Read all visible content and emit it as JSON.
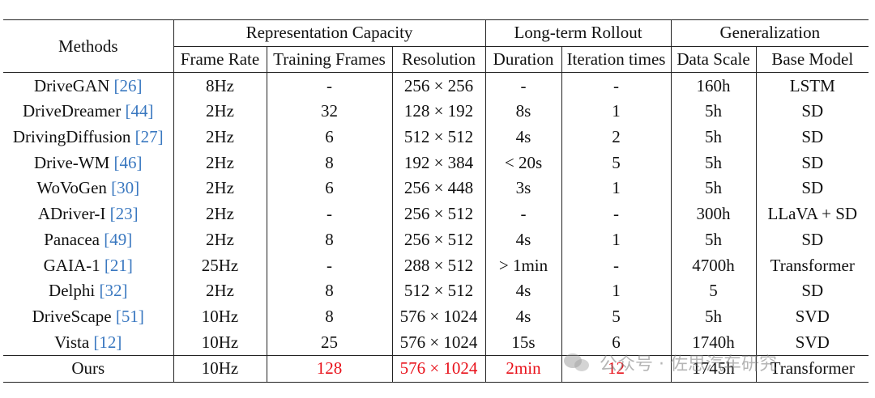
{
  "header": {
    "methods": "Methods",
    "groups": {
      "representation": "Representation Capacity",
      "rollout": "Long-term Rollout",
      "generalization": "Generalization"
    },
    "columns": {
      "frame_rate": "Frame Rate",
      "training_frames": "Training Frames",
      "resolution": "Resolution",
      "duration": "Duration",
      "iteration_times": "Iteration times",
      "data_scale": "Data Scale",
      "base_model": "Base Model"
    }
  },
  "rows": [
    {
      "name": "DriveGAN",
      "cite": "[26]",
      "frame_rate": "8Hz",
      "training_frames": "-",
      "resolution": "256 × 256",
      "duration": "-",
      "iteration_times": "-",
      "data_scale": "160h",
      "base_model": "LSTM"
    },
    {
      "name": "DriveDreamer",
      "cite": "[44]",
      "frame_rate": "2Hz",
      "training_frames": "32",
      "resolution": "128 × 192",
      "duration": "8s",
      "iteration_times": "1",
      "data_scale": "5h",
      "base_model": "SD"
    },
    {
      "name": "DrivingDiffusion",
      "cite": "[27]",
      "frame_rate": "2Hz",
      "training_frames": "6",
      "resolution": "512 × 512",
      "duration": "4s",
      "iteration_times": "2",
      "data_scale": "5h",
      "base_model": "SD"
    },
    {
      "name": "Drive-WM",
      "cite": "[46]",
      "frame_rate": "2Hz",
      "training_frames": "8",
      "resolution": "192 × 384",
      "duration": "< 20s",
      "iteration_times": "5",
      "data_scale": "5h",
      "base_model": "SD"
    },
    {
      "name": "WoVoGen",
      "cite": "[30]",
      "frame_rate": "2Hz",
      "training_frames": "6",
      "resolution": "256 × 448",
      "duration": "3s",
      "iteration_times": "1",
      "data_scale": "5h",
      "base_model": "SD"
    },
    {
      "name": "ADriver-I",
      "cite": "[23]",
      "frame_rate": "2Hz",
      "training_frames": "-",
      "resolution": "256 × 512",
      "duration": "-",
      "iteration_times": "-",
      "data_scale": "300h",
      "base_model": "LLaVA + SD"
    },
    {
      "name": "Panacea",
      "cite": "[49]",
      "frame_rate": "2Hz",
      "training_frames": "8",
      "resolution": "256 × 512",
      "duration": "4s",
      "iteration_times": "1",
      "data_scale": "5h",
      "base_model": "SD"
    },
    {
      "name": "GAIA-1",
      "cite": "[21]",
      "frame_rate": "25Hz",
      "training_frames": "-",
      "resolution": "288 × 512",
      "duration": "> 1min",
      "iteration_times": "-",
      "data_scale": "4700h",
      "base_model": "Transformer"
    },
    {
      "name": "Delphi",
      "cite": "[32]",
      "frame_rate": "2Hz",
      "training_frames": "8",
      "resolution": "512 × 512",
      "duration": "4s",
      "iteration_times": "1",
      "data_scale": "5",
      "base_model": "SD"
    },
    {
      "name": "DriveScape",
      "cite": "[51]",
      "frame_rate": "10Hz",
      "training_frames": "8",
      "resolution": "576 × 1024",
      "duration": "4s",
      "iteration_times": "5",
      "data_scale": "5h",
      "base_model": "SVD"
    },
    {
      "name": "Vista",
      "cite": "[12]",
      "frame_rate": "10Hz",
      "training_frames": "25",
      "resolution": "576 × 1024",
      "duration": "15s",
      "iteration_times": "6",
      "data_scale": "1740h",
      "base_model": "SVD"
    }
  ],
  "ours": {
    "name": "Ours",
    "frame_rate": "10Hz",
    "training_frames": "128",
    "resolution": "576 × 1024",
    "duration": "2min",
    "iteration_times": "12",
    "data_scale": "1745h",
    "base_model": "Transformer"
  },
  "watermark": {
    "icon": "wechat-icon",
    "text": "公众号 · 佐思汽车研究"
  },
  "colors": {
    "citation": "#3a78c0",
    "highlight": "#e8111a"
  }
}
